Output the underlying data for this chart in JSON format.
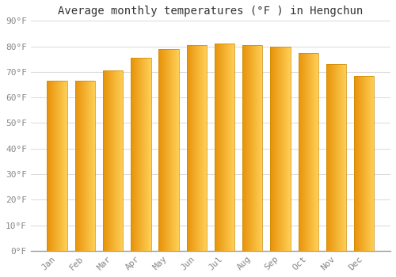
{
  "title": "Average monthly temperatures (°F ) in Hengchun",
  "months": [
    "Jan",
    "Feb",
    "Mar",
    "Apr",
    "May",
    "Jun",
    "Jul",
    "Aug",
    "Sep",
    "Oct",
    "Nov",
    "Dec"
  ],
  "values": [
    66.5,
    66.5,
    70.5,
    75.5,
    79.0,
    80.5,
    81.0,
    80.5,
    80.0,
    77.5,
    73.0,
    68.5
  ],
  "bar_color_left": "#E8920A",
  "bar_color_right": "#FFCF55",
  "background_color": "#FFFFFF",
  "grid_color": "#DDDDDD",
  "ylim": [
    0,
    90
  ],
  "yticks": [
    0,
    10,
    20,
    30,
    40,
    50,
    60,
    70,
    80,
    90
  ],
  "ytick_labels": [
    "0°F",
    "10°F",
    "20°F",
    "30°F",
    "40°F",
    "50°F",
    "60°F",
    "70°F",
    "80°F",
    "90°F"
  ],
  "title_fontsize": 10,
  "tick_fontsize": 8,
  "font_family": "monospace",
  "tick_color": "#888888",
  "bar_width": 0.72
}
